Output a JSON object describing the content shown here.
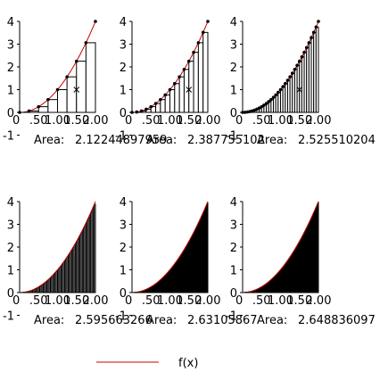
{
  "chart_data": {
    "type": "bar",
    "function_color": "#cc0000",
    "x_ticks": [
      "0",
      ".50",
      "1.00",
      "1.50",
      "2.00"
    ],
    "y_ticks": [
      "4",
      "3",
      "2",
      "1",
      "0",
      "-1"
    ],
    "xlim": [
      0,
      2
    ],
    "ylim": [
      -1,
      4
    ],
    "area_label": "Area:",
    "legend": {
      "label": "f(x)",
      "placement": "bottom-center"
    },
    "charts": [
      {
        "n": 8,
        "area": "2.12244897959",
        "markers": true
      },
      {
        "n": 16,
        "area": "2.387755102",
        "markers": true
      },
      {
        "n": 32,
        "area": "2.525510204",
        "markers": true
      },
      {
        "n": 64,
        "area": "2.595663266",
        "markers": false
      },
      {
        "n": 128,
        "area": "2.63105867",
        "markers": false
      },
      {
        "n": 256,
        "area": "2.648836097",
        "markers": false
      }
    ]
  }
}
